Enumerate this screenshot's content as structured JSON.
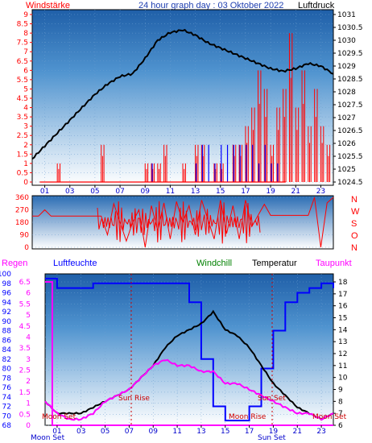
{
  "header": {
    "left_label": "Windstärke",
    "title": "24 hour graph day : 03 Oktober 2022",
    "right_label": "Luftdruck"
  },
  "wind_panel": {
    "left_ticks": [
      "0",
      "0.5",
      "1",
      "1.5",
      "2",
      "2.5",
      "3",
      "3.5",
      "4",
      "4.5",
      "5",
      "5.5",
      "6",
      "6.5",
      "7",
      "7.5",
      "8",
      "8.5",
      "9"
    ],
    "right_ticks": [
      "1024.5",
      "1025",
      "1025.5",
      "1026",
      "1026.5",
      "1027",
      "1027.5",
      "1028",
      "1028.5",
      "1029",
      "1029.5",
      "1030",
      "1030.5",
      "1031"
    ],
    "x_ticks": [
      "01",
      "03",
      "05",
      "07",
      "09",
      "11",
      "13",
      "15",
      "17",
      "19",
      "21",
      "23"
    ],
    "left_color": "#ff0000",
    "right_color": "#000000"
  },
  "direction_panel": {
    "left_ticks": [
      "0",
      "90",
      "180",
      "270",
      "360"
    ],
    "right_letters": [
      "N",
      "W",
      "S",
      "O",
      "N"
    ],
    "color": "#ff0000"
  },
  "humidity_panel": {
    "top_labels": {
      "regen": "Regen",
      "luftfeuchte": "Luftfeuchte",
      "windchill": "Windchill",
      "temperatur": "Temperatur",
      "taupunkt": "Taupunkt"
    },
    "humidity_ticks": [
      "68",
      "70",
      "72",
      "74",
      "76",
      "78",
      "80",
      "82",
      "84",
      "86",
      "88",
      "90",
      "92",
      "94",
      "96",
      "98",
      "100"
    ],
    "rain_ticks": [
      "0",
      "0.5",
      "1",
      "1.5",
      "2",
      "2.5",
      "3",
      "3.5",
      "4",
      "4.5",
      "5",
      "5.5",
      "6",
      "6.5"
    ],
    "temp_ticks": [
      "6",
      "7",
      "8",
      "9",
      "10",
      "11",
      "12",
      "13",
      "14",
      "15",
      "16",
      "17",
      "18"
    ],
    "x_ticks": [
      "01",
      "03",
      "05",
      "07",
      "09",
      "11",
      "13",
      "15",
      "17",
      "19",
      "21",
      "23"
    ],
    "annotations": {
      "moon_set_left": "Moon Set",
      "sun_rise": "Sun Rise",
      "moon_rise": "Moon Rise",
      "sun_set": "Sun Set",
      "moon_set_right": "Moon Set"
    },
    "bottom_labels": {
      "moon_set": "Moon Set",
      "sun_set": "Sun Set"
    },
    "colors": {
      "regen": "#ff00ff",
      "luftfeuchte": "#0000ff",
      "windchill": "#008000",
      "temperatur": "#000000",
      "taupunkt": "#ff00ff"
    }
  },
  "chart_data": [
    {
      "type": "line",
      "title": "24 hour graph day : 03 Oktober 2022",
      "xlabel": "",
      "ylabel": "Luftdruck",
      "x_hours": [
        0,
        1,
        2,
        3,
        4,
        5,
        6,
        7,
        8,
        9,
        10,
        11,
        12,
        13,
        14,
        15,
        16,
        17,
        18,
        19,
        20,
        21,
        22,
        23,
        24
      ],
      "series": [
        {
          "name": "Luftdruck",
          "values": [
            1025.4,
            1025.9,
            1026.4,
            1026.9,
            1027.4,
            1027.9,
            1028.3,
            1028.6,
            1028.7,
            1029.3,
            1030.0,
            1030.3,
            1030.4,
            1030.2,
            1029.9,
            1029.7,
            1029.5,
            1029.3,
            1029.1,
            1028.9,
            1028.8,
            1028.9,
            1029.1,
            1029.0,
            1028.7
          ]
        }
      ],
      "ylim": [
        1024.5,
        1031
      ]
    },
    {
      "type": "bar",
      "ylabel": "Windstärke",
      "x_hours_start": 0,
      "step_hours": 0.5,
      "series": [
        {
          "name": "gust",
          "values": [
            0,
            0,
            0,
            0,
            1,
            0,
            0,
            0,
            0,
            0,
            0,
            2,
            0,
            0,
            0,
            0,
            0,
            0,
            1,
            1,
            1,
            2,
            0,
            0,
            1,
            0,
            2,
            2,
            0,
            1,
            1,
            0,
            2,
            2,
            3,
            4,
            6,
            5,
            2,
            4,
            5,
            8,
            4,
            6,
            3,
            5,
            3,
            2,
            0,
            0,
            0,
            0,
            0,
            0,
            0,
            0,
            0,
            0,
            0,
            0,
            0,
            0,
            0,
            0,
            0,
            0,
            0,
            0,
            0,
            0,
            0,
            0,
            0,
            0
          ]
        },
        {
          "name": "mean",
          "values": [
            0,
            0,
            0,
            0,
            0,
            0,
            0,
            0,
            0,
            0,
            0,
            0,
            0,
            0,
            0,
            0,
            0,
            0,
            0,
            1,
            0,
            0,
            0,
            0,
            0,
            0,
            1,
            2,
            2,
            1,
            2,
            2,
            2,
            2,
            2,
            2,
            1,
            2,
            1,
            1,
            0,
            0,
            0,
            0,
            0,
            0,
            0,
            0,
            0,
            0,
            0,
            0,
            0,
            0,
            0,
            0,
            0,
            0,
            0,
            0,
            0,
            0,
            0,
            0,
            0,
            0,
            0,
            0,
            0,
            0,
            0,
            0,
            0,
            0
          ]
        }
      ],
      "ylim": [
        0,
        9
      ]
    },
    {
      "type": "line",
      "ylabel": "Windrichtung",
      "x_hours": [
        0,
        0.5,
        1,
        1.5,
        2,
        3,
        4,
        5,
        5.5,
        6,
        6.5,
        7,
        7.5,
        8,
        8.5,
        9,
        9.5,
        10,
        10.5,
        11,
        11.5,
        12,
        12.5,
        13,
        13.5,
        14,
        14.5,
        15,
        15.5,
        16,
        16.5,
        17,
        17.5,
        18,
        18.5,
        19,
        20,
        21,
        22,
        22.5,
        23,
        23.5,
        24
      ],
      "series": [
        {
          "name": "Windrichtung",
          "values": [
            225,
            225,
            270,
            225,
            225,
            225,
            225,
            225,
            225,
            90,
            315,
            180,
            45,
            180,
            270,
            0,
            300,
            120,
            320,
            60,
            330,
            180,
            300,
            90,
            340,
            200,
            60,
            340,
            100,
            300,
            60,
            340,
            150,
            230,
            310,
            230,
            230,
            230,
            230,
            360,
            0,
            320,
            360
          ]
        }
      ],
      "ylim": [
        0,
        360
      ]
    },
    {
      "type": "line",
      "xlabel": "",
      "x_hours": [
        0,
        1,
        2,
        3,
        4,
        5,
        6,
        7,
        8,
        9,
        10,
        11,
        12,
        13,
        14,
        15,
        16,
        17,
        18,
        19,
        20,
        21,
        22,
        23,
        24
      ],
      "series": [
        {
          "name": "Luftfeuchte",
          "values": [
            99,
            97,
            97,
            97,
            98,
            98,
            98,
            98,
            98,
            98,
            98,
            98,
            94,
            82,
            72,
            69,
            69,
            72,
            80,
            88,
            94,
            96,
            97,
            98,
            97
          ]
        },
        {
          "name": "Temperatur",
          "values": [
            8.0,
            7.0,
            7.0,
            7.0,
            7.5,
            8.0,
            8.5,
            9.0,
            10.0,
            11.0,
            12.5,
            13.5,
            14.0,
            14.5,
            15.5,
            14.0,
            13.5,
            12.5,
            11.0,
            9.5,
            8.5,
            7.5,
            7.0,
            6.5,
            7.0
          ]
        },
        {
          "name": "Taupunkt",
          "values": [
            8.0,
            7.0,
            6.5,
            6.5,
            7.0,
            8.0,
            8.5,
            9.0,
            10.0,
            11.0,
            11.5,
            11.0,
            11.0,
            10.5,
            10.5,
            9.5,
            9.5,
            9.0,
            8.5,
            8.0,
            7.5,
            7.0,
            7.0,
            6.5,
            7.0
          ]
        },
        {
          "name": "Regen",
          "values": [
            6.5,
            6.5,
            0,
            0,
            0,
            0,
            0,
            0,
            0,
            0,
            0,
            0,
            0,
            0,
            0,
            0,
            0,
            0,
            0,
            0,
            0,
            0,
            0,
            0,
            0
          ]
        }
      ],
      "ylim_humidity": [
        68,
        100
      ],
      "ylim_temperature": [
        6,
        18
      ],
      "ylim_rain": [
        0,
        6.5
      ]
    }
  ]
}
